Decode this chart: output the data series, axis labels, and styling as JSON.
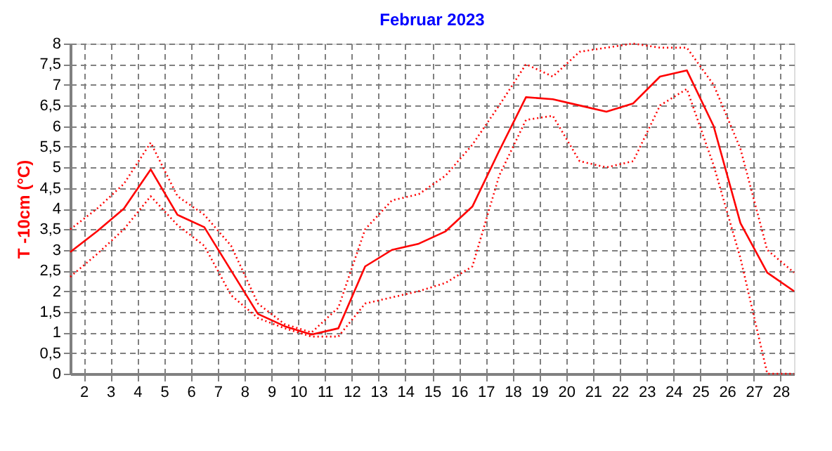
{
  "chart_data": {
    "type": "line",
    "title": "Februar 2023",
    "ylabel": "T -10cm (°C)",
    "x": [
      1.5,
      2.5,
      3.5,
      4.5,
      5.5,
      6.5,
      7.5,
      8.5,
      9.5,
      10.5,
      11.5,
      12.5,
      13.5,
      14.5,
      15.5,
      16.5,
      17.5,
      18.5,
      19.5,
      20.5,
      21.5,
      22.5,
      23.5,
      24.5,
      25.5,
      26.5,
      27.5,
      28.5
    ],
    "series": [
      {
        "color": "#ff0000",
        "line_style": "dotted",
        "values": [
          3.5,
          4.0,
          4.6,
          5.6,
          4.3,
          3.85,
          3.1,
          1.7,
          1.2,
          1.0,
          1.6,
          3.5,
          4.2,
          4.35,
          4.8,
          5.55,
          6.5,
          7.5,
          7.2,
          7.8,
          7.9,
          8.0,
          7.9,
          7.9,
          7.0,
          5.45,
          3.0,
          2.45
        ]
      },
      {
        "color": "#ff0000",
        "line_style": "solid",
        "values": [
          2.95,
          3.45,
          4.0,
          4.95,
          3.85,
          3.55,
          2.5,
          1.45,
          1.15,
          0.95,
          1.1,
          2.6,
          3.0,
          3.15,
          3.45,
          4.05,
          5.4,
          6.7,
          6.65,
          6.5,
          6.35,
          6.55,
          7.2,
          7.35,
          6.0,
          3.65,
          2.45,
          2.0
        ]
      },
      {
        "color": "#ff0000",
        "line_style": "dotted",
        "values": [
          2.35,
          2.9,
          3.5,
          4.3,
          3.6,
          3.1,
          1.9,
          1.35,
          1.1,
          0.9,
          0.9,
          1.7,
          1.85,
          2.0,
          2.2,
          2.6,
          4.8,
          6.15,
          6.25,
          5.15,
          5.0,
          5.15,
          6.5,
          6.9,
          5.05,
          2.8,
          0,
          0
        ]
      }
    ],
    "xlim": [
      1.5,
      28.5
    ],
    "xticks": [
      2,
      3,
      4,
      5,
      6,
      7,
      8,
      9,
      10,
      11,
      12,
      13,
      14,
      15,
      16,
      17,
      18,
      19,
      20,
      21,
      22,
      23,
      24,
      25,
      26,
      27,
      28
    ],
    "ylim": [
      0,
      8
    ],
    "yticks": [
      0,
      {
        "value": 0.5,
        "label": "0,5"
      },
      1,
      {
        "value": 1.5,
        "label": "1,5"
      },
      2,
      {
        "value": 2.5,
        "label": "2,5"
      },
      3,
      {
        "value": 3.5,
        "label": "3,5"
      },
      4,
      {
        "value": 4.5,
        "label": "4,5"
      },
      5,
      {
        "value": 5.5,
        "label": "5,5"
      },
      6,
      {
        "value": 6.5,
        "label": "6,5"
      },
      7,
      {
        "value": 7.5,
        "label": "7,5"
      },
      8
    ],
    "grid": true,
    "marker": "none"
  }
}
